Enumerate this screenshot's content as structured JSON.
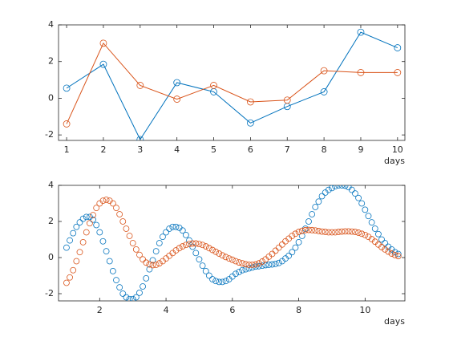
{
  "chart_data": [
    {
      "type": "line",
      "line": true,
      "marker": "o",
      "x": [
        1,
        2,
        3,
        4,
        5,
        6,
        7,
        8,
        9,
        10
      ],
      "series": [
        {
          "color": "#0072BD",
          "values": [
            0.55,
            1.85,
            -2.25,
            0.85,
            0.35,
            -1.35,
            -0.45,
            0.35,
            3.6,
            2.75
          ]
        },
        {
          "color": "#D95319",
          "values": [
            -1.4,
            3.0,
            0.7,
            -0.05,
            0.7,
            -0.2,
            -0.1,
            1.5,
            1.4,
            1.4
          ]
        }
      ],
      "xlim": [
        0.78,
        10.2
      ],
      "ylim": [
        -2.3,
        4
      ],
      "xticks": [
        1,
        2,
        3,
        4,
        5,
        6,
        7,
        8,
        9,
        10
      ],
      "yticks": [
        -2,
        0,
        2,
        4
      ],
      "xlabel": "days",
      "grid": false
    },
    {
      "type": "line",
      "line": false,
      "marker": "o",
      "x": [
        1.0,
        1.1,
        1.2,
        1.3,
        1.4,
        1.5,
        1.6,
        1.7,
        1.8,
        1.9,
        2.0,
        2.1,
        2.2,
        2.3,
        2.4,
        2.5,
        2.6,
        2.7,
        2.8,
        2.9,
        3.0,
        3.1,
        3.2,
        3.3,
        3.4,
        3.5,
        3.6,
        3.7,
        3.8,
        3.9,
        4.0,
        4.1,
        4.2,
        4.3,
        4.4,
        4.5,
        4.6,
        4.7,
        4.8,
        4.9,
        5.0,
        5.1,
        5.2,
        5.3,
        5.4,
        5.5,
        5.6,
        5.7,
        5.8,
        5.9,
        6.0,
        6.1,
        6.2,
        6.3,
        6.4,
        6.5,
        6.6,
        6.7,
        6.8,
        6.9,
        7.0,
        7.1,
        7.2,
        7.3,
        7.4,
        7.5,
        7.6,
        7.7,
        7.8,
        7.9,
        8.0,
        8.1,
        8.2,
        8.3,
        8.4,
        8.5,
        8.6,
        8.7,
        8.8,
        8.9,
        9.0,
        9.1,
        9.2,
        9.3,
        9.4,
        9.5,
        9.6,
        9.7,
        9.8,
        9.9,
        10.0,
        10.1,
        10.2,
        10.3,
        10.4,
        10.5,
        10.6,
        10.7,
        10.8,
        10.9,
        11.0
      ],
      "series": [
        {
          "color": "#0072BD",
          "values": [
            0.55,
            0.95,
            1.35,
            1.7,
            1.95,
            2.15,
            2.25,
            2.25,
            2.1,
            1.8,
            1.4,
            0.9,
            0.35,
            -0.2,
            -0.75,
            -1.25,
            -1.65,
            -2.0,
            -2.2,
            -2.3,
            -2.3,
            -2.2,
            -1.95,
            -1.6,
            -1.15,
            -0.65,
            -0.15,
            0.35,
            0.8,
            1.15,
            1.4,
            1.6,
            1.7,
            1.7,
            1.65,
            1.5,
            1.25,
            0.95,
            0.6,
            0.25,
            -0.1,
            -0.45,
            -0.75,
            -1.0,
            -1.2,
            -1.3,
            -1.35,
            -1.35,
            -1.3,
            -1.2,
            -1.05,
            -0.9,
            -0.8,
            -0.7,
            -0.65,
            -0.6,
            -0.55,
            -0.5,
            -0.48,
            -0.45,
            -0.42,
            -0.4,
            -0.38,
            -0.35,
            -0.3,
            -0.2,
            -0.05,
            0.1,
            0.3,
            0.55,
            0.85,
            1.2,
            1.6,
            2.0,
            2.4,
            2.8,
            3.1,
            3.4,
            3.6,
            3.75,
            3.85,
            3.95,
            4.0,
            4.0,
            3.98,
            3.9,
            3.75,
            3.55,
            3.3,
            3.0,
            2.65,
            2.3,
            1.95,
            1.6,
            1.3,
            1.0,
            0.8,
            0.6,
            0.45,
            0.3,
            0.2
          ]
        },
        {
          "color": "#D95319",
          "values": [
            -1.4,
            -1.1,
            -0.7,
            -0.2,
            0.3,
            0.85,
            1.4,
            1.9,
            2.35,
            2.75,
            3.0,
            3.15,
            3.2,
            3.15,
            3.0,
            2.75,
            2.4,
            2.0,
            1.6,
            1.2,
            0.8,
            0.45,
            0.15,
            -0.1,
            -0.28,
            -0.38,
            -0.42,
            -0.4,
            -0.32,
            -0.2,
            -0.05,
            0.1,
            0.25,
            0.4,
            0.52,
            0.62,
            0.7,
            0.75,
            0.78,
            0.78,
            0.75,
            0.7,
            0.62,
            0.52,
            0.42,
            0.32,
            0.22,
            0.12,
            0.03,
            -0.05,
            -0.12,
            -0.2,
            -0.27,
            -0.32,
            -0.37,
            -0.4,
            -0.4,
            -0.38,
            -0.32,
            -0.22,
            -0.1,
            0.05,
            0.2,
            0.38,
            0.55,
            0.72,
            0.9,
            1.05,
            1.2,
            1.32,
            1.42,
            1.48,
            1.52,
            1.53,
            1.52,
            1.5,
            1.47,
            1.44,
            1.42,
            1.4,
            1.4,
            1.4,
            1.42,
            1.44,
            1.45,
            1.45,
            1.44,
            1.42,
            1.38,
            1.32,
            1.25,
            1.15,
            1.02,
            0.88,
            0.72,
            0.58,
            0.45,
            0.33,
            0.22,
            0.14,
            0.08
          ]
        }
      ],
      "xlim": [
        0.76,
        11.2
      ],
      "ylim": [
        -2.4,
        4
      ],
      "xticks": [
        2,
        4,
        6,
        8,
        10
      ],
      "yticks": [
        -2,
        0,
        2,
        4
      ],
      "xlabel": "days",
      "grid": false
    }
  ]
}
